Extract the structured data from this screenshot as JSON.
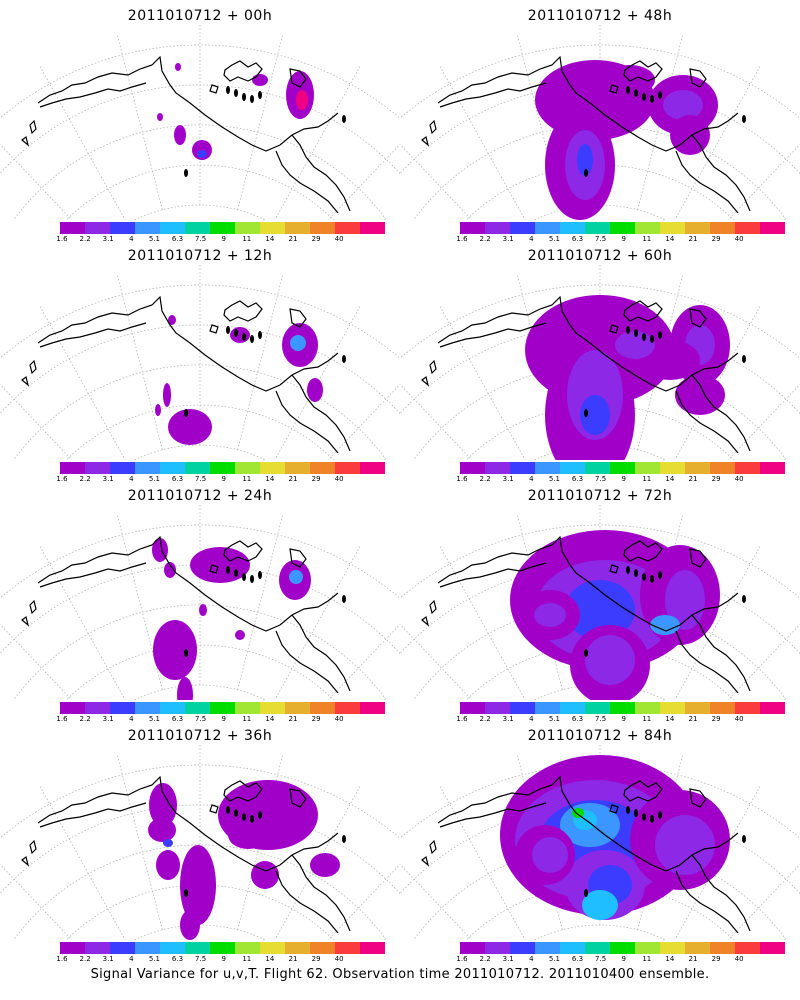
{
  "panels": [
    {
      "title": "2011010712 + 00h",
      "lead": "00h"
    },
    {
      "title": "2011010712 + 48h",
      "lead": "48h"
    },
    {
      "title": "2011010712 + 12h",
      "lead": "12h"
    },
    {
      "title": "2011010712 + 60h",
      "lead": "60h"
    },
    {
      "title": "2011010712 + 24h",
      "lead": "24h"
    },
    {
      "title": "2011010712 + 72h",
      "lead": "72h"
    },
    {
      "title": "2011010712 + 36h",
      "lead": "36h"
    },
    {
      "title": "2011010712 + 84h",
      "lead": "84h"
    }
  ],
  "colorbar": {
    "labels": [
      "1.6",
      "2.2",
      "3.1",
      "4",
      "5.1",
      "6.3",
      "7.5",
      "9",
      "11",
      "14",
      "21",
      "29",
      "40"
    ],
    "colors": [
      "#a000c8",
      "#8c28e6",
      "#3c3cff",
      "#3c96ff",
      "#1ebeff",
      "#00d2a0",
      "#00dc00",
      "#a0e632",
      "#e6dc32",
      "#e6af2d",
      "#f08228",
      "#fa3c3c",
      "#f00082"
    ]
  },
  "footer": "Signal Variance for u,v,T. Flight 62. Observation time 2011010712. 2011010400 ensemble."
}
